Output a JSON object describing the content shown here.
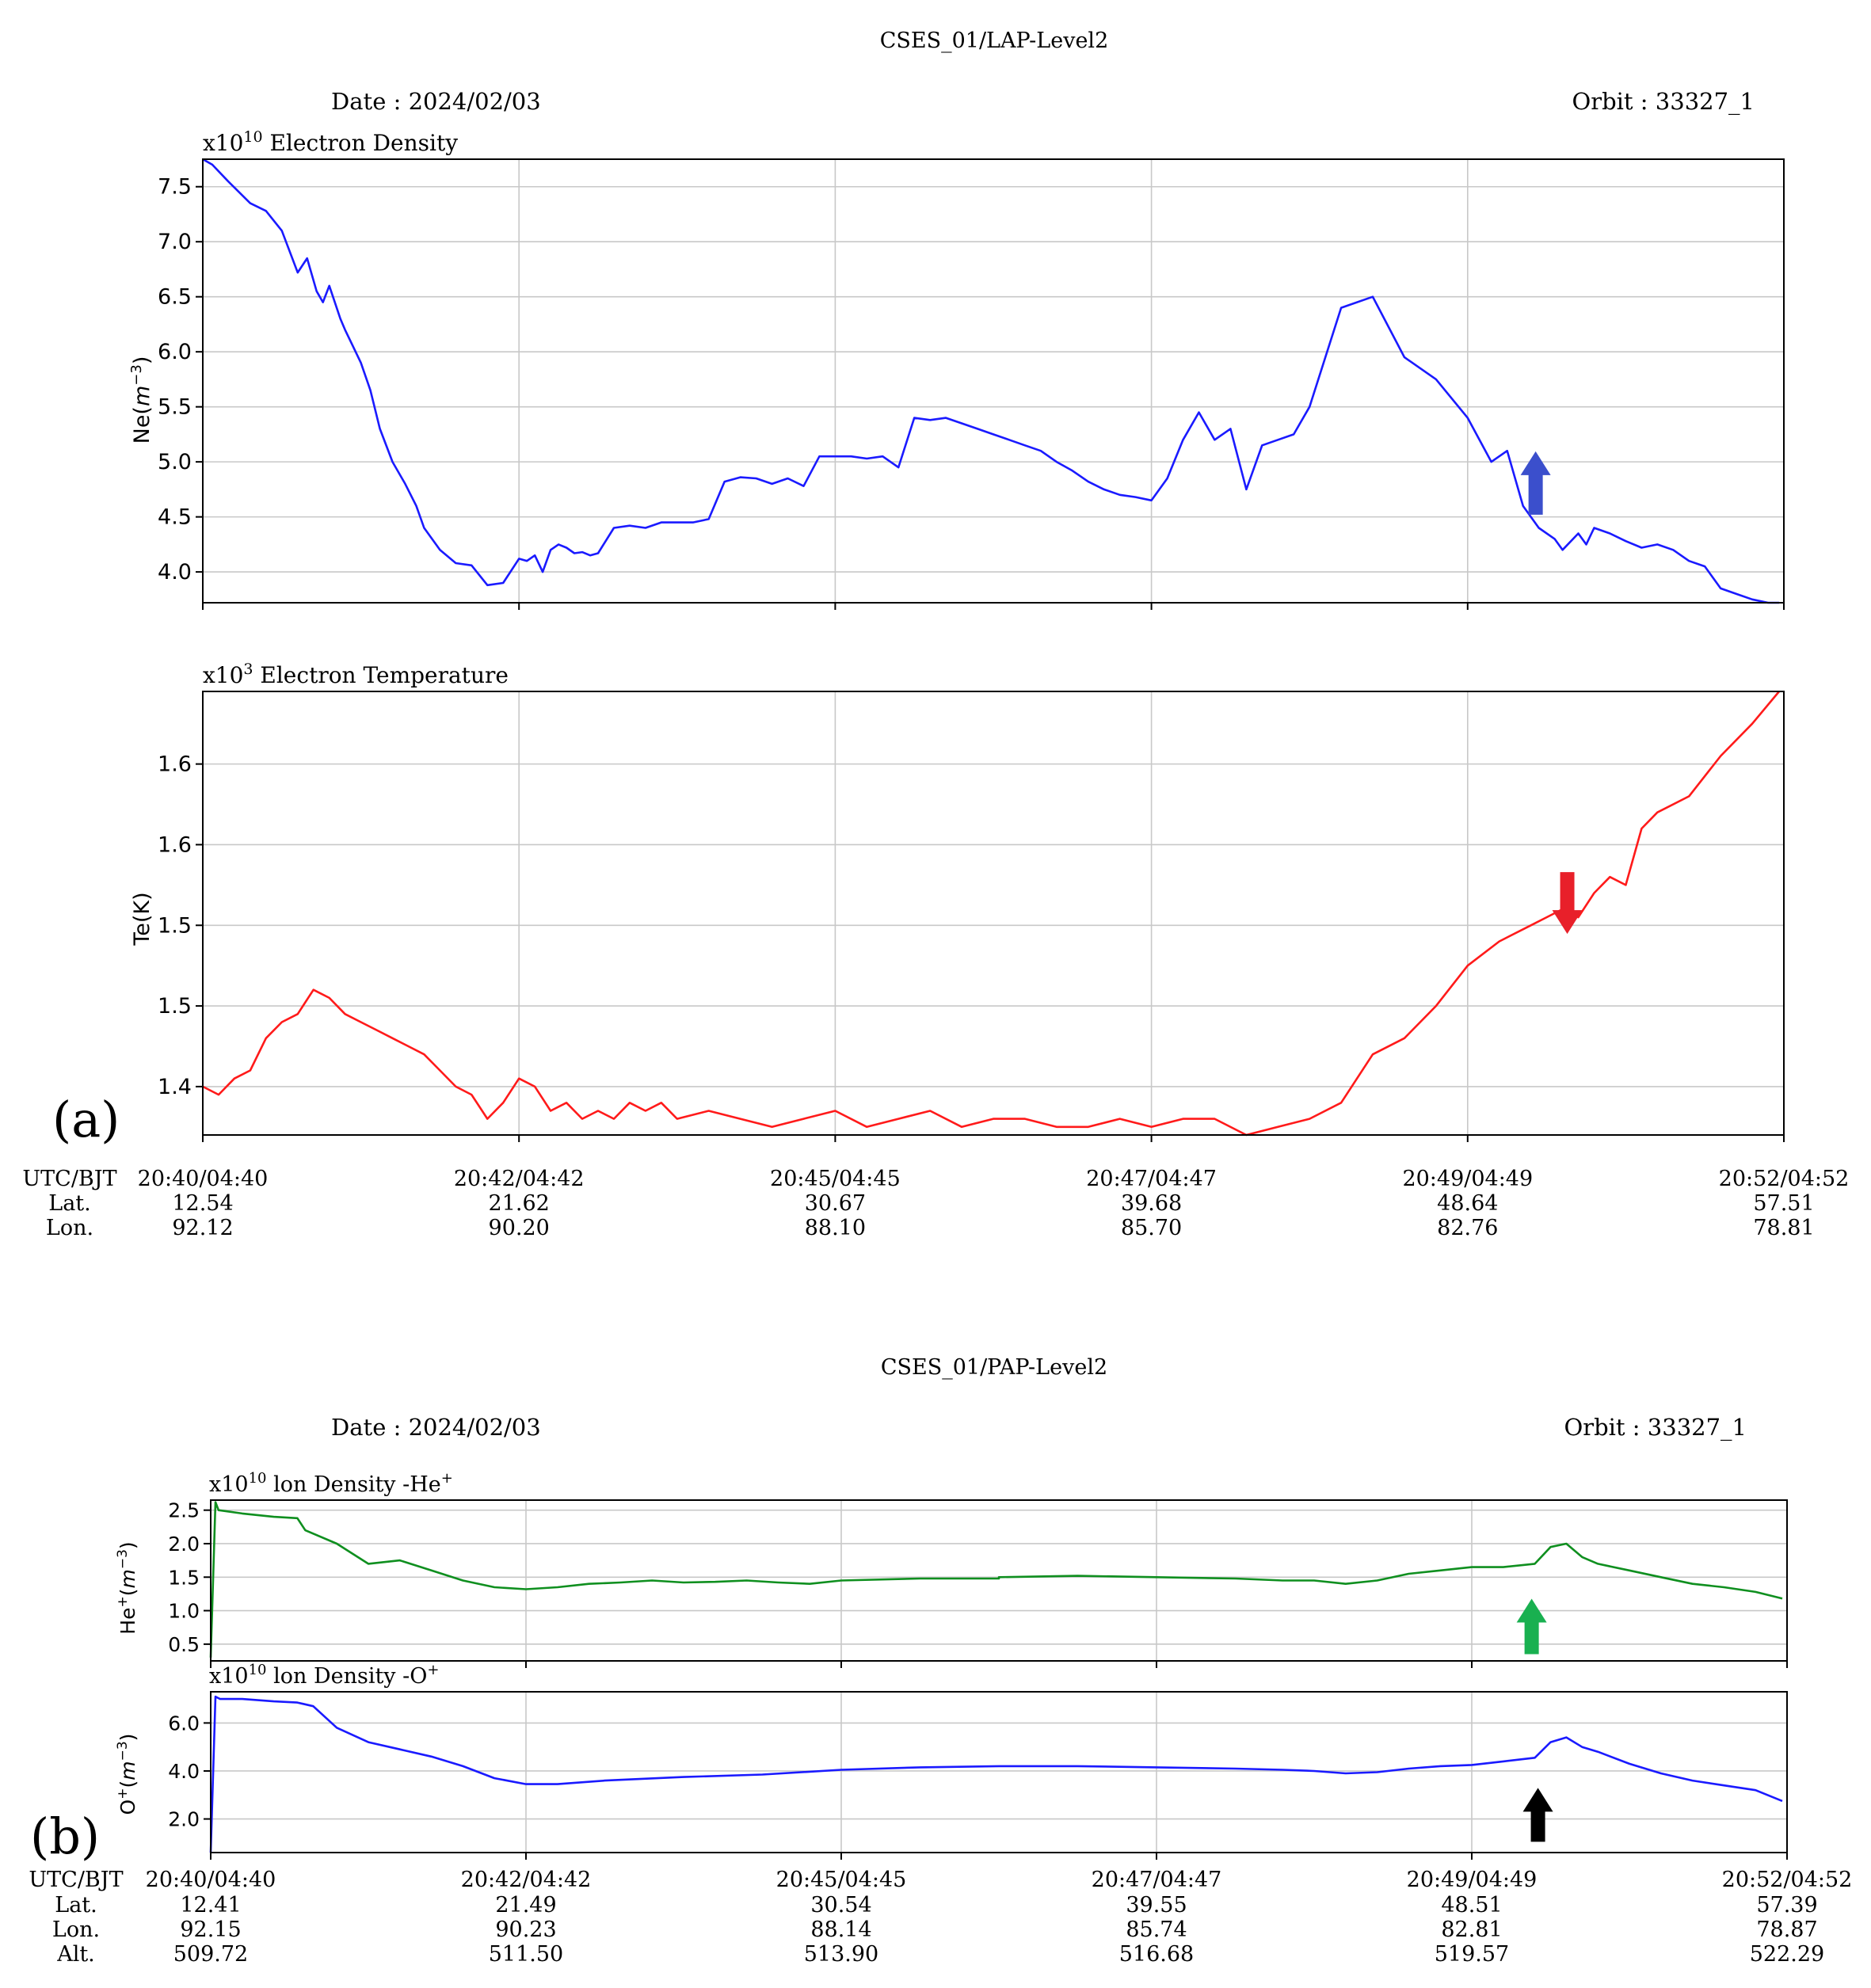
{
  "figure_a": {
    "title": "CSES_01/LAP-Level2",
    "date": "Date : 2024/02/03",
    "orbit": "Orbit : 33327_1",
    "panel_label": "(a)",
    "footer": {
      "row_labels": [
        "UTC/BJT",
        "Lat.",
        "Lon."
      ],
      "times": [
        "20:40/04:40",
        "20:42/04:42",
        "20:45/04:45",
        "20:47/04:47",
        "20:49/04:49",
        "20:52/04:52"
      ],
      "lat": [
        "12.54",
        "21.62",
        "30.67",
        "39.68",
        "48.64",
        "57.51"
      ],
      "lon": [
        "92.12",
        "90.20",
        "88.10",
        "85.70",
        "82.76",
        "78.81"
      ]
    }
  },
  "figure_b": {
    "title": "CSES_01/PAP-Level2",
    "date": "Date : 2024/02/03",
    "orbit": "Orbit : 33327_1",
    "panel_label": "(b)",
    "footer": {
      "row_labels": [
        "UTC/BJT",
        "Lat.",
        "Lon.",
        "Alt."
      ],
      "times": [
        "20:40/04:40",
        "20:42/04:42",
        "20:45/04:45",
        "20:47/04:47",
        "20:49/04:49",
        "20:52/04:52"
      ],
      "lat": [
        "12.41",
        "21.49",
        "30.54",
        "39.55",
        "48.51",
        "57.39"
      ],
      "lon": [
        "92.15",
        "90.23",
        "88.14",
        "85.74",
        "82.81",
        "78.87"
      ],
      "alt": [
        "509.72",
        "511.50",
        "513.90",
        "516.68",
        "519.57",
        "522.29"
      ]
    }
  },
  "chart_data": [
    {
      "type": "line",
      "title": "x10¹⁰ Electron Density",
      "ylabel": "Ne(m⁻³)",
      "x_ticks": [
        "20:40/04:40",
        "20:42/04:42",
        "20:45/04:45",
        "20:47/04:47",
        "20:49/04:49",
        "20:52/04:52"
      ],
      "x_range": [
        0,
        1
      ],
      "y_ticks": [
        "4.0",
        "4.5",
        "5.0",
        "5.5",
        "6.0",
        "6.5",
        "7.0",
        "7.5"
      ],
      "y_tick_values": [
        4.0,
        4.5,
        5.0,
        5.5,
        6.0,
        6.5,
        7.0,
        7.5
      ],
      "ylim": [
        3.72,
        7.75
      ],
      "grid": true,
      "color": "#1a1aff",
      "series": [
        {
          "x": [
            0,
            0.006,
            0.016,
            0.03,
            0.04,
            0.05,
            0.06,
            0.066,
            0.072,
            0.076,
            0.08,
            0.087,
            0.09,
            0.095,
            0.1,
            0.106,
            0.112,
            0.12,
            0.128,
            0.135,
            0.14,
            0.15,
            0.16,
            0.17,
            0.18,
            0.19,
            0.2,
            0.205,
            0.21,
            0.215,
            0.22,
            0.225,
            0.23,
            0.235,
            0.24,
            0.245,
            0.25,
            0.26,
            0.27,
            0.28,
            0.29,
            0.3,
            0.31,
            0.32,
            0.33,
            0.34,
            0.35,
            0.36,
            0.37,
            0.38,
            0.39,
            0.4,
            0.41,
            0.42,
            0.43,
            0.44,
            0.45,
            0.46,
            0.47,
            0.48,
            0.49,
            0.5,
            0.51,
            0.52,
            0.53,
            0.54,
            0.55,
            0.56,
            0.57,
            0.58,
            0.59,
            0.6,
            0.61,
            0.62,
            0.63,
            0.64,
            0.65,
            0.66,
            0.67,
            0.68,
            0.69,
            0.7,
            0.72,
            0.74,
            0.76,
            0.78,
            0.8,
            0.815,
            0.825,
            0.835,
            0.845,
            0.855,
            0.86,
            0.87,
            0.875,
            0.88,
            0.89,
            0.9,
            0.91,
            0.92,
            0.93,
            0.94,
            0.95,
            0.955,
            0.96,
            0.97,
            0.98,
            0.99,
            0.997
          ],
          "y": [
            7.75,
            7.7,
            7.55,
            7.35,
            7.28,
            7.1,
            6.72,
            6.85,
            6.55,
            6.45,
            6.6,
            6.3,
            6.2,
            6.05,
            5.9,
            5.65,
            5.3,
            5.0,
            4.8,
            4.6,
            4.4,
            4.2,
            4.08,
            4.06,
            3.88,
            3.9,
            4.12,
            4.1,
            4.15,
            4.0,
            4.2,
            4.25,
            4.22,
            4.17,
            4.18,
            4.15,
            4.17,
            4.4,
            4.42,
            4.4,
            4.45,
            4.45,
            4.45,
            4.48,
            4.82,
            4.86,
            4.85,
            4.8,
            4.85,
            4.78,
            5.05,
            5.05,
            5.05,
            5.03,
            5.05,
            4.95,
            5.4,
            5.38,
            5.4,
            5.35,
            5.3,
            5.25,
            5.2,
            5.15,
            5.1,
            5.0,
            4.92,
            4.82,
            4.75,
            4.7,
            4.68,
            4.65,
            4.85,
            5.2,
            5.45,
            5.2,
            5.3,
            4.75,
            5.15,
            5.2,
            5.25,
            5.5,
            6.4,
            6.5,
            5.95,
            5.75,
            5.4,
            5.0,
            5.1,
            4.6,
            4.4,
            4.3,
            4.2,
            4.35,
            4.25,
            4.4,
            4.35,
            4.28,
            4.22,
            4.25,
            4.2,
            4.1,
            4.05,
            3.95,
            3.85,
            3.8,
            3.75,
            3.72,
            3.72
          ]
        }
      ],
      "annotation": "blue up arrow"
    },
    {
      "type": "line",
      "title": "x10³ Electron Temperature",
      "ylabel": "Te(K)",
      "x_ticks": [
        "20:40/04:40",
        "20:42/04:42",
        "20:45/04:45",
        "20:47/04:47",
        "20:49/04:49",
        "20:52/04:52"
      ],
      "x_range": [
        0,
        1
      ],
      "y_ticks": [
        "1.4",
        "1.5",
        "1.5",
        "1.6",
        "1.6"
      ],
      "y_tick_values": [
        1.4,
        1.45,
        1.5,
        1.55,
        1.6
      ],
      "ylim": [
        1.37,
        1.645
      ],
      "grid": true,
      "color": "#ff1a1a",
      "series": [
        {
          "x": [
            0,
            0.01,
            0.02,
            0.03,
            0.04,
            0.05,
            0.06,
            0.07,
            0.08,
            0.09,
            0.1,
            0.11,
            0.12,
            0.13,
            0.14,
            0.15,
            0.16,
            0.17,
            0.18,
            0.19,
            0.2,
            0.21,
            0.22,
            0.23,
            0.24,
            0.25,
            0.26,
            0.27,
            0.28,
            0.29,
            0.3,
            0.32,
            0.34,
            0.36,
            0.38,
            0.4,
            0.42,
            0.44,
            0.46,
            0.48,
            0.5,
            0.52,
            0.54,
            0.56,
            0.58,
            0.6,
            0.62,
            0.64,
            0.66,
            0.68,
            0.7,
            0.72,
            0.74,
            0.76,
            0.78,
            0.8,
            0.82,
            0.84,
            0.85,
            0.86,
            0.87,
            0.88,
            0.89,
            0.9,
            0.91,
            0.92,
            0.94,
            0.96,
            0.98,
            0.997
          ],
          "y": [
            1.4,
            1.395,
            1.405,
            1.41,
            1.43,
            1.44,
            1.445,
            1.46,
            1.455,
            1.445,
            1.44,
            1.435,
            1.43,
            1.425,
            1.42,
            1.41,
            1.4,
            1.395,
            1.38,
            1.39,
            1.405,
            1.4,
            1.385,
            1.39,
            1.38,
            1.385,
            1.38,
            1.39,
            1.385,
            1.39,
            1.38,
            1.385,
            1.38,
            1.375,
            1.38,
            1.385,
            1.375,
            1.38,
            1.385,
            1.375,
            1.38,
            1.38,
            1.375,
            1.375,
            1.38,
            1.375,
            1.38,
            1.38,
            1.37,
            1.375,
            1.38,
            1.39,
            1.42,
            1.43,
            1.45,
            1.475,
            1.49,
            1.5,
            1.505,
            1.51,
            1.505,
            1.52,
            1.53,
            1.525,
            1.56,
            1.57,
            1.58,
            1.605,
            1.625,
            1.645
          ]
        }
      ],
      "annotation": "red down arrow"
    },
    {
      "type": "line",
      "title": "x10¹⁰ lon Density -He⁺",
      "ylabel": "He⁺(m⁻³)",
      "x_ticks": [
        "20:40/04:40",
        "20:42/04:42",
        "20:45/04:45",
        "20:47/04:47",
        "20:49/04:49",
        "20:52/04:52"
      ],
      "x_range": [
        0,
        1
      ],
      "y_ticks": [
        "0.5",
        "1.0",
        "1.5",
        "2.0",
        "2.5"
      ],
      "y_tick_values": [
        0.5,
        1.0,
        1.5,
        2.0,
        2.5
      ],
      "ylim": [
        0.25,
        2.65
      ],
      "grid": true,
      "color": "#0f8f1f",
      "series": [
        {
          "x": [
            0,
            0.003,
            0.005,
            0.02,
            0.04,
            0.055,
            0.06,
            0.08,
            0.1,
            0.12,
            0.14,
            0.16,
            0.18,
            0.2,
            0.22,
            0.24,
            0.26,
            0.28,
            0.3,
            0.32,
            0.34,
            0.36,
            0.38,
            0.4,
            0.45,
            0.5,
            0.5,
            0.5,
            0.55,
            0.6,
            0.65,
            0.68,
            0.7,
            0.72,
            0.74,
            0.76,
            0.78,
            0.8,
            0.82,
            0.84,
            0.85,
            0.86,
            0.87,
            0.88,
            0.9,
            0.92,
            0.94,
            0.96,
            0.98,
            0.997
          ],
          "y": [
            0.3,
            2.62,
            2.5,
            2.45,
            2.4,
            2.38,
            2.2,
            2.0,
            1.7,
            1.75,
            1.6,
            1.45,
            1.35,
            1.32,
            1.35,
            1.4,
            1.42,
            1.45,
            1.42,
            1.43,
            1.45,
            1.42,
            1.4,
            1.45,
            1.48,
            1.48,
            1.5,
            1.5,
            1.52,
            1.5,
            1.48,
            1.45,
            1.45,
            1.4,
            1.45,
            1.55,
            1.6,
            1.65,
            1.65,
            1.7,
            1.95,
            2.0,
            1.8,
            1.7,
            1.6,
            1.5,
            1.4,
            1.35,
            1.28,
            1.18
          ]
        }
      ],
      "annotation": "green up arrow"
    },
    {
      "type": "line",
      "title": "x10¹⁰ lon Density -O⁺",
      "ylabel": "O⁺(m⁻³)",
      "x_ticks": [
        "20:40/04:40",
        "20:42/04:42",
        "20:45/04:45",
        "20:47/04:47",
        "20:49/04:49",
        "20:52/04:52"
      ],
      "x_range": [
        0,
        1
      ],
      "y_ticks": [
        "2.0",
        "4.0",
        "6.0"
      ],
      "y_tick_values": [
        2.0,
        4.0,
        6.0
      ],
      "ylim": [
        0.6,
        7.3
      ],
      "grid": true,
      "color": "#1a1aff",
      "series": [
        {
          "x": [
            0,
            0.003,
            0.006,
            0.02,
            0.04,
            0.055,
            0.065,
            0.08,
            0.1,
            0.12,
            0.14,
            0.16,
            0.18,
            0.2,
            0.22,
            0.25,
            0.3,
            0.35,
            0.4,
            0.45,
            0.5,
            0.55,
            0.6,
            0.65,
            0.68,
            0.7,
            0.72,
            0.74,
            0.76,
            0.78,
            0.8,
            0.82,
            0.84,
            0.85,
            0.86,
            0.87,
            0.88,
            0.9,
            0.92,
            0.94,
            0.96,
            0.98,
            0.997
          ],
          "y": [
            0.6,
            7.1,
            7.0,
            7.0,
            6.9,
            6.85,
            6.7,
            5.8,
            5.2,
            4.9,
            4.6,
            4.2,
            3.7,
            3.45,
            3.45,
            3.6,
            3.75,
            3.85,
            4.05,
            4.15,
            4.2,
            4.2,
            4.15,
            4.1,
            4.05,
            4.0,
            3.9,
            3.95,
            4.1,
            4.2,
            4.25,
            4.4,
            4.55,
            5.2,
            5.4,
            5.0,
            4.8,
            4.3,
            3.9,
            3.6,
            3.4,
            3.2,
            2.75
          ]
        }
      ],
      "annotation": "black up arrow"
    }
  ]
}
